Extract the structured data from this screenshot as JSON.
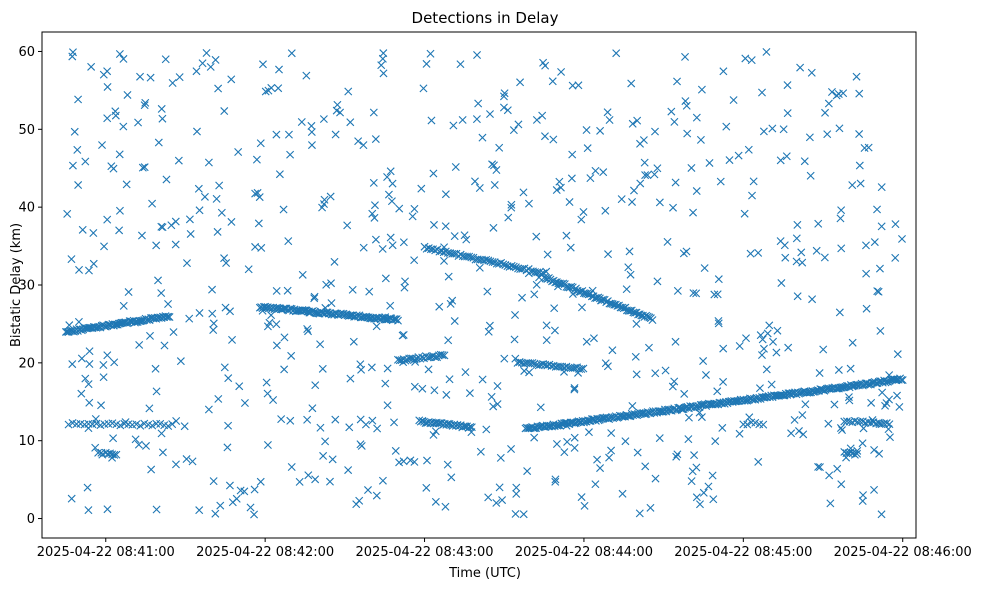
{
  "chart_data": {
    "type": "scatter",
    "title": "Detections in Delay",
    "xlabel": "Time (UTC)",
    "ylabel": "Bistatic Delay (km)",
    "x_ticks": [
      "2025-04-22 08:41:00",
      "2025-04-22 08:42:00",
      "2025-04-22 08:43:00",
      "2025-04-22 08:44:00",
      "2025-04-22 08:45:00",
      "2025-04-22 08:46:00"
    ],
    "y_ticks": [
      "0",
      "10",
      "20",
      "30",
      "40",
      "50",
      "60"
    ],
    "xlim": [
      "2025-04-22 08:40:36",
      "2025-04-22 08:46:05"
    ],
    "ylim": [
      -2.5,
      62.5
    ],
    "grid": false,
    "marker": "x",
    "colors": {
      "series": "#1f77b4"
    },
    "series": [
      {
        "tracks": [
          {
            "x_start": "2025-04-22 08:40:45",
            "x_end": "2025-04-22 08:41:24",
            "y_start": 24.0,
            "y_end": 26.0,
            "x_step_s": 0.5
          },
          {
            "x_start": "2025-04-22 08:41:58",
            "x_end": "2025-04-22 08:42:50",
            "y_start": 27.2,
            "y_end": 25.5,
            "x_step_s": 0.5
          },
          {
            "x_start": "2025-04-22 08:42:50",
            "x_end": "2025-04-22 08:43:08",
            "y_start": 20.3,
            "y_end": 21.0,
            "x_step_s": 0.7
          },
          {
            "x_start": "2025-04-22 08:43:00",
            "x_end": "2025-04-22 08:43:45",
            "y_start": 34.8,
            "y_end": 31.5,
            "x_step_s": 0.8
          },
          {
            "x_start": "2025-04-22 08:43:45",
            "x_end": "2025-04-22 08:44:26",
            "y_start": 31.0,
            "y_end": 25.6,
            "x_step_s": 0.6
          },
          {
            "x_start": "2025-04-22 08:43:35",
            "x_end": "2025-04-22 08:44:00",
            "y_start": 20.0,
            "y_end": 19.3,
            "x_step_s": 0.8
          },
          {
            "x_start": "2025-04-22 08:42:58",
            "x_end": "2025-04-22 08:43:18",
            "y_start": 12.5,
            "y_end": 11.7,
            "x_step_s": 0.6
          },
          {
            "x_start": "2025-04-22 08:43:38",
            "x_end": "2025-04-22 08:46:00",
            "y_start": 11.5,
            "y_end": 17.9,
            "x_step_s": 0.5
          },
          {
            "x_start": "2025-04-22 08:40:46",
            "x_end": "2025-04-22 08:41:25",
            "y_start": 12.2,
            "y_end": 12.0,
            "x_step_s": 1.5
          },
          {
            "x_start": "2025-04-22 08:41:00",
            "x_end": "2025-04-22 08:41:04",
            "y_start": 8.5,
            "y_end": 8.2,
            "x_step_s": 0.8
          },
          {
            "x_start": "2025-04-22 08:45:38",
            "x_end": "2025-04-22 08:45:55",
            "y_start": 12.5,
            "y_end": 12.1,
            "x_step_s": 1.0
          },
          {
            "x_start": "2025-04-22 08:45:38",
            "x_end": "2025-04-22 08:45:43",
            "y_start": 8.5,
            "y_end": 8.3,
            "x_step_s": 0.8
          },
          {
            "x_start": "2025-04-22 08:45:00",
            "x_end": "2025-04-22 08:45:08",
            "y_start": 12.2,
            "y_end": 12.2,
            "x_step_s": 1.5
          }
        ],
        "clutter": {
          "x_start": "2025-04-22 08:40:45",
          "x_end": "2025-04-22 08:46:00",
          "y_min": 0.5,
          "y_max": 60.0,
          "count": 720,
          "seed": 7
        }
      }
    ]
  }
}
